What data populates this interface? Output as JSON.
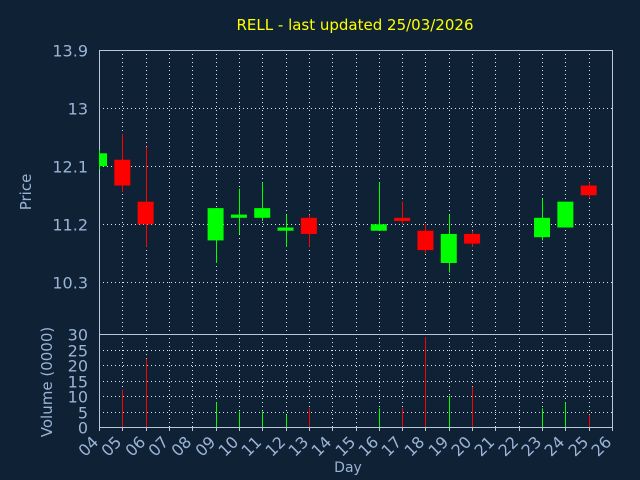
{
  "chart_data": {
    "type": "candlestick",
    "title": "RELL - last updated 25/03/2026",
    "xlabel": "Day",
    "ylabel": "Price",
    "volume_label": "Volume (0000)",
    "grid": true,
    "price_ylim": [
      9.5,
      13.9
    ],
    "price_ticks": [
      "13.9",
      "13",
      "12.1",
      "11.2",
      "10.3"
    ],
    "volume_ylim": [
      0,
      30
    ],
    "volume_ticks": [
      "30",
      "25",
      "20",
      "15",
      "10",
      "5",
      "0"
    ],
    "x_tick_labels": [
      "04",
      "05",
      "06",
      "07",
      "08",
      "09",
      "10",
      "11",
      "12",
      "13",
      "14",
      "15",
      "16",
      "17",
      "18",
      "19",
      "20",
      "21",
      "22",
      "23",
      "24",
      "25",
      "26"
    ],
    "candles": [
      {
        "day": 4,
        "open": 12.1,
        "high": 12.35,
        "low": 12.05,
        "close": 12.3,
        "volume": 0
      },
      {
        "day": 5,
        "open": 12.2,
        "high": 12.6,
        "low": 11.7,
        "close": 11.8,
        "volume": 12
      },
      {
        "day": 6,
        "open": 11.55,
        "high": 12.4,
        "low": 10.85,
        "close": 11.2,
        "volume": 22
      },
      {
        "day": 9,
        "open": 10.95,
        "high": 11.45,
        "low": 10.6,
        "close": 11.45,
        "volume": 8
      },
      {
        "day": 10,
        "open": 11.3,
        "high": 11.75,
        "low": 11.05,
        "close": 11.35,
        "volume": 5
      },
      {
        "day": 11,
        "open": 11.3,
        "high": 11.85,
        "low": 11.25,
        "close": 11.45,
        "volume": 5
      },
      {
        "day": 12,
        "open": 11.1,
        "high": 11.35,
        "low": 10.85,
        "close": 11.15,
        "volume": 4
      },
      {
        "day": 13,
        "open": 11.3,
        "high": 11.35,
        "low": 10.85,
        "close": 11.05,
        "volume": 6
      },
      {
        "day": 16,
        "open": 11.1,
        "high": 11.85,
        "low": 11.1,
        "close": 11.2,
        "volume": 6
      },
      {
        "day": 17,
        "open": 11.3,
        "high": 11.55,
        "low": 11.2,
        "close": 11.25,
        "volume": 6
      },
      {
        "day": 18,
        "open": 11.1,
        "high": 11.2,
        "low": 10.75,
        "close": 10.8,
        "volume": 29
      },
      {
        "day": 19,
        "open": 10.6,
        "high": 11.35,
        "low": 10.45,
        "close": 11.05,
        "volume": 10
      },
      {
        "day": 20,
        "open": 11.05,
        "high": 11.1,
        "low": 10.85,
        "close": 10.9,
        "volume": 13
      },
      {
        "day": 23,
        "open": 11.0,
        "high": 11.6,
        "low": 10.95,
        "close": 11.3,
        "volume": 6
      },
      {
        "day": 24,
        "open": 11.15,
        "high": 11.55,
        "low": 11.15,
        "close": 11.55,
        "volume": 8
      },
      {
        "day": 25,
        "open": 11.8,
        "high": 11.85,
        "low": 11.6,
        "close": 11.65,
        "volume": 4
      }
    ]
  },
  "colors": {
    "background": "#0f2134",
    "up": "#00ff00",
    "down": "#ff0000",
    "axis": "#b8c8d8",
    "grid": "#dbe4ee",
    "label": "#9ab4d6",
    "title": "#ffff00"
  }
}
